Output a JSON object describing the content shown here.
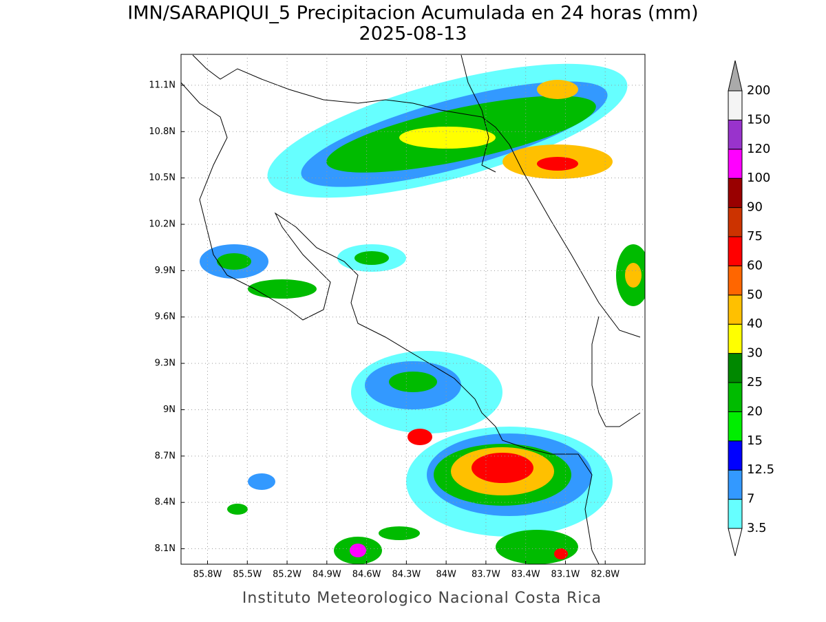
{
  "title": "IMN/SARAPIQUI_5 Precipitacion Acumulada en 24 horas (mm)",
  "subtitle": "2025-08-13",
  "footer": "Instituto Meteorologico Nacional Costa Rica",
  "map": {
    "lonlim": [
      -86.0,
      -82.5
    ],
    "latlim": [
      8.0,
      11.3
    ],
    "lon_ticks": [
      {
        "value": -85.8,
        "label": "85.8W"
      },
      {
        "value": -85.5,
        "label": "85.5W"
      },
      {
        "value": -85.2,
        "label": "85.2W"
      },
      {
        "value": -84.9,
        "label": "84.9W"
      },
      {
        "value": -84.6,
        "label": "84.6W"
      },
      {
        "value": -84.3,
        "label": "84.3W"
      },
      {
        "value": -84.0,
        "label": "84W"
      },
      {
        "value": -83.7,
        "label": "83.7W"
      },
      {
        "value": -83.4,
        "label": "83.4W"
      },
      {
        "value": -83.1,
        "label": "83.1W"
      },
      {
        "value": -82.8,
        "label": "82.8W"
      }
    ],
    "lat_ticks": [
      {
        "value": 8.1,
        "label": "8.1N"
      },
      {
        "value": 8.4,
        "label": "8.4N"
      },
      {
        "value": 8.7,
        "label": "8.7N"
      },
      {
        "value": 9.0,
        "label": "9N"
      },
      {
        "value": 9.3,
        "label": "9.3N"
      },
      {
        "value": 9.6,
        "label": "9.6N"
      },
      {
        "value": 9.9,
        "label": "9.9N"
      },
      {
        "value": 10.2,
        "label": "10.2N"
      },
      {
        "value": 10.5,
        "label": "10.5N"
      },
      {
        "value": 10.8,
        "label": "10.8N"
      },
      {
        "value": 11.1,
        "label": "11.1N"
      }
    ],
    "grid": true
  },
  "colorbar": {
    "levels": [
      3.5,
      {
        "value": 7,
        "label": "7"
      },
      12.5,
      15,
      20,
      25,
      30,
      40,
      50,
      60,
      75,
      90,
      100,
      120,
      150,
      200
    ],
    "colors": [
      "#66ffff",
      "#3399ff",
      "#0000ff",
      "#00ee00",
      "#00bb00",
      "#008800",
      "#ffff00",
      "#ffc000",
      "#ff6600",
      "#ff0000",
      "#cc3300",
      "#990000",
      "#ff00ff",
      "#9933cc",
      "#f4f4f4"
    ],
    "over_color": "#aaaaaa",
    "under_color": "#ffffff"
  }
}
